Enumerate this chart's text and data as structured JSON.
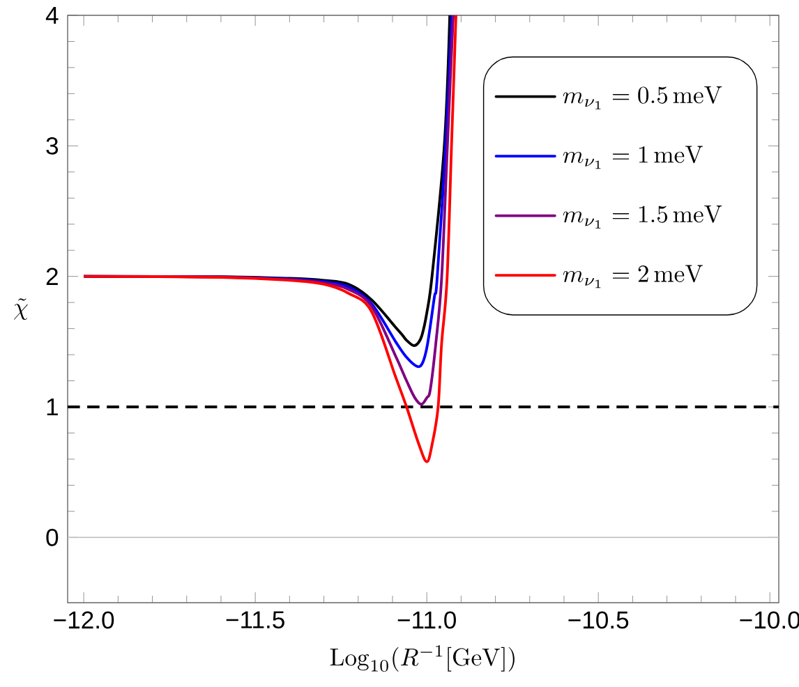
{
  "chart_data": {
    "type": "line",
    "xlabel": "\\mathrm{Log}_{10}(R^{-1}[\\mathrm{GeV}])",
    "ylabel": "\\tilde{\\chi}",
    "xlim": [
      -12.047,
      -9.974
    ],
    "ylim": [
      -0.5,
      4
    ],
    "xticks": [
      {
        "value": -12,
        "label": "−12.0"
      },
      {
        "value": -11.5,
        "label": "−11.5"
      },
      {
        "value": -11,
        "label": "−11.0"
      },
      {
        "value": -10.5,
        "label": "−10.5"
      },
      {
        "value": -10,
        "label": "−10.0"
      }
    ],
    "yticks": [
      0,
      1,
      2,
      3,
      4
    ],
    "grid": false,
    "legend": "top right",
    "marker": "none",
    "line_style": "solid",
    "ref_lines": [
      {
        "axis": "y",
        "value": 1,
        "color": "#000000",
        "line_style": "dashed"
      },
      {
        "axis": "y",
        "value": 0,
        "color": "#c0c0c0",
        "line_style": "solid"
      }
    ],
    "series": [
      {
        "name": "m_{\\nu_1} = 0.5\\,\\mathrm{meV}",
        "color": "#000000",
        "x": [
          -12,
          -11.6,
          -11.4,
          -11.3,
          -11.228,
          -11.161,
          -11.091,
          -11.071,
          -11.059,
          -11.039,
          -11.025,
          -11.014,
          -11.0,
          -10.984,
          -10.949,
          -10.933
        ],
        "values": [
          2,
          1.997,
          1.985,
          1.97,
          1.94,
          1.82,
          1.61,
          1.55,
          1.51,
          1.47,
          1.49,
          1.55,
          1.72,
          2.02,
          3,
          4
        ]
      },
      {
        "name": "m_{\\nu_1} = 1\\,\\mathrm{meV}",
        "color": "#0000ff",
        "x": [
          -12,
          -11.6,
          -11.4,
          -11.3,
          -11.228,
          -11.161,
          -11.091,
          -11.059,
          -11.028,
          -11.012,
          -10.998,
          -10.978,
          -10.97,
          -10.945,
          -10.927
        ],
        "values": [
          2,
          1.996,
          1.98,
          1.96,
          1.92,
          1.79,
          1.5,
          1.38,
          1.31,
          1.34,
          1.48,
          1.84,
          1.98,
          3,
          4
        ]
      },
      {
        "name": "m_{\\nu_1} = 1.5\\,\\mathrm{meV}",
        "color": "#800080",
        "x": [
          -12,
          -11.6,
          -11.4,
          -11.3,
          -11.228,
          -11.161,
          -11.091,
          -11.059,
          -11.035,
          -11.016,
          -11.0,
          -10.99,
          -10.974,
          -10.957,
          -10.94,
          -10.923
        ],
        "values": [
          2,
          1.995,
          1.975,
          1.95,
          1.9,
          1.77,
          1.39,
          1.2,
          1.07,
          1.02,
          1.07,
          1.13,
          1.48,
          1.98,
          3,
          4
        ]
      },
      {
        "name": "m_{\\nu_1} = 2\\,\\mathrm{meV}",
        "color": "#ff0000",
        "x": [
          -12,
          -11.6,
          -11.4,
          -11.3,
          -11.228,
          -11.161,
          -11.091,
          -11.059,
          -11.024,
          -11.0,
          -10.984,
          -10.967,
          -10.957,
          -10.941,
          -10.928,
          -10.915
        ],
        "values": [
          2,
          1.993,
          1.97,
          1.94,
          1.87,
          1.73,
          1.23,
          1.0,
          0.72,
          0.58,
          0.72,
          1.0,
          1.48,
          1.98,
          3,
          4
        ]
      }
    ]
  }
}
